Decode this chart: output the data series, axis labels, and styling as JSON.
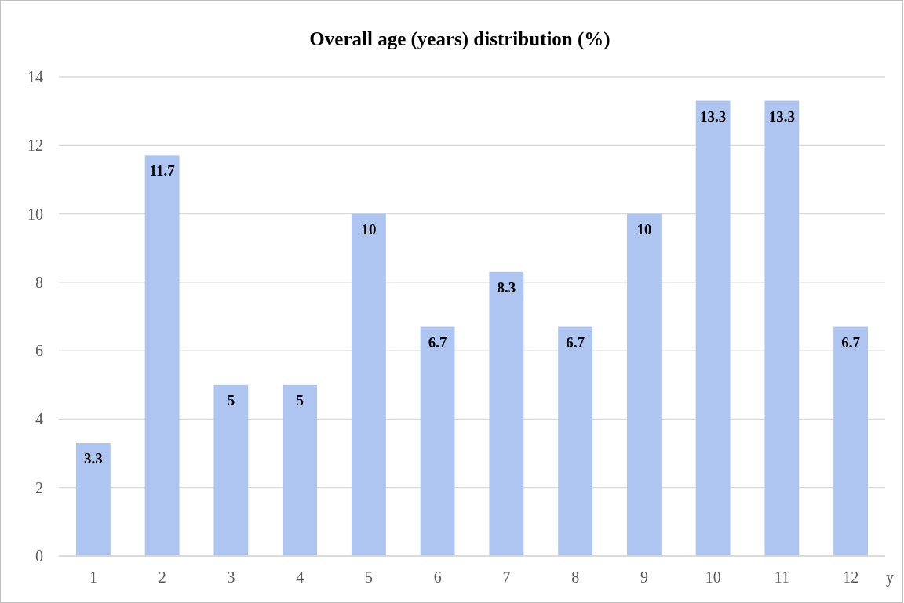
{
  "chart_data": {
    "type": "bar",
    "title": "Overall age (years) distribution (%)",
    "xlabel": "y",
    "categories": [
      "1",
      "2",
      "3",
      "4",
      "5",
      "6",
      "7",
      "8",
      "9",
      "10",
      "11",
      "12"
    ],
    "values": [
      3.3,
      11.7,
      5,
      5,
      10,
      6.7,
      8.3,
      6.7,
      10,
      13.3,
      13.3,
      6.7
    ],
    "color": "#adc5f0",
    "ylim": [
      0,
      14
    ],
    "yticks": [
      0,
      2,
      4,
      6,
      8,
      10,
      12,
      14
    ],
    "grid": "y",
    "data_labels": true
  }
}
